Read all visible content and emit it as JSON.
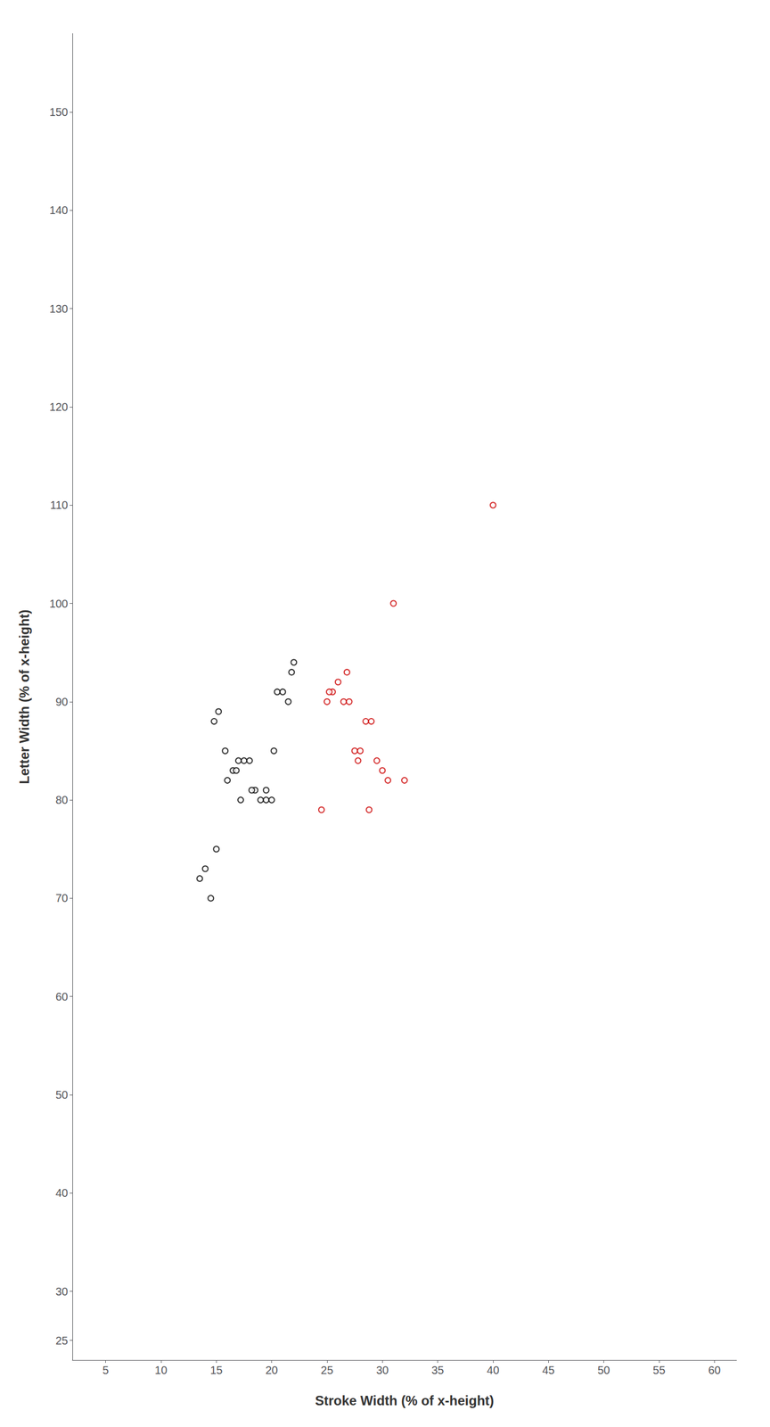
{
  "chart_data": {
    "type": "scatter",
    "xlabel": "Stroke Width (% of x-height)",
    "ylabel": "Letter Width (% of x-height)",
    "xlim": [
      2,
      62
    ],
    "ylim": [
      23,
      158
    ],
    "xticks": [
      5,
      10,
      15,
      20,
      25,
      30,
      35,
      40,
      45,
      50,
      55,
      60
    ],
    "yticks": [
      25,
      30,
      40,
      50,
      60,
      70,
      80,
      90,
      100,
      110,
      120,
      130,
      140,
      150
    ],
    "grid": false,
    "series": [
      {
        "color": "#000000",
        "marker": "open circle",
        "x": [
          13.5,
          14.0,
          14.8,
          15.2,
          15.8,
          16.0,
          16.5,
          17.0,
          17.5,
          18.0,
          18.5,
          19.0,
          19.5,
          20.0,
          20.5,
          21.0,
          21.8,
          22.0,
          14.5,
          15.0,
          16.8,
          17.2,
          18.2,
          19.5,
          20.2,
          21.5
        ],
        "values": [
          72,
          73,
          88,
          89,
          85,
          82,
          83,
          84,
          84,
          84,
          81,
          80,
          80,
          80,
          91,
          91,
          93,
          94,
          70,
          75,
          83,
          80,
          81,
          81,
          85,
          90
        ]
      },
      {
        "color": "#cc0000",
        "marker": "open circle",
        "x": [
          24.5,
          25.0,
          25.5,
          26.0,
          26.5,
          27.0,
          27.5,
          28.0,
          28.5,
          29.0,
          29.5,
          30.0,
          30.5,
          31.0,
          32.0,
          40.0,
          25.2,
          26.8,
          27.8,
          28.8
        ],
        "values": [
          79,
          90,
          91,
          92,
          90,
          90,
          85,
          85,
          88,
          88,
          84,
          83,
          82,
          100,
          82,
          110,
          91,
          93,
          84,
          79
        ]
      }
    ]
  }
}
